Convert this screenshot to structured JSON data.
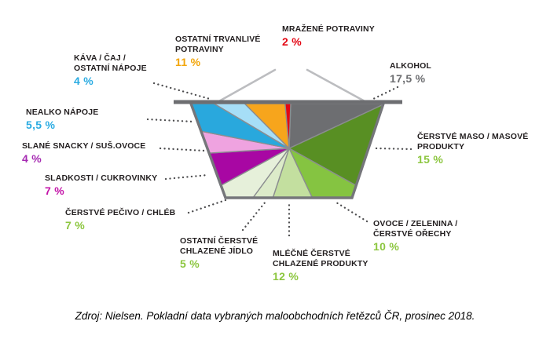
{
  "chart_data": {
    "type": "pie",
    "variant": "basket-shaped segment chart (shopping basket infographic)",
    "unit": "%",
    "total": 100,
    "legend_position": "callout labels around chart with dotted leader lines",
    "segments": [
      {
        "id": "alkohol",
        "label": "ALKOHOL",
        "lines": [
          "ALKOHOL"
        ],
        "value": 17.5,
        "value_label": "17,5 %",
        "color": "#6d6e71",
        "value_color": "#6d6e71"
      },
      {
        "id": "maso",
        "label": "ČERSTVÉ MASO / MASOVÉ PRODUKTY",
        "lines": [
          "ČERSTVÉ MASO / MASOVÉ",
          "PRODUKTY"
        ],
        "value": 15,
        "value_label": "15 %",
        "color": "#588f23",
        "value_color": "#8cc63f"
      },
      {
        "id": "ovoce",
        "label": "OVOCE / ZELENINA / ČERSTVÉ OŘECHY",
        "lines": [
          "OVOCE / ZELENINA /",
          "ČERSTVÉ OŘECHY"
        ],
        "value": 10,
        "value_label": "10 %",
        "color": "#85c441",
        "value_color": "#8cc63f"
      },
      {
        "id": "mlecne",
        "label": "MLÉČNÉ ČERSTVÉ CHLAZENÉ PRODUKTY",
        "lines": [
          "MLÉČNÉ ČERSTVÉ",
          "CHLAZENÉ PRODUKTY"
        ],
        "value": 12,
        "value_label": "12 %",
        "color": "#c3df9f",
        "value_color": "#8cc63f"
      },
      {
        "id": "ostatni-chlazene",
        "label": "OSTATNÍ ČERSTVÉ CHLAZENÉ JÍDLO",
        "lines": [
          "OSTATNÍ ČERSTVÉ",
          "CHLAZENÉ JÍDLO"
        ],
        "value": 5,
        "value_label": "5 %",
        "color": "#dcebc9",
        "value_color": "#8cc63f"
      },
      {
        "id": "pecivo",
        "label": "ČERSTVÉ PEČIVO / CHLÉB",
        "lines": [
          "ČERSTVÉ PEČIVO / CHLÉB"
        ],
        "value": 7,
        "value_label": "7 %",
        "color": "#e6f0da",
        "value_color": "#8cc63f"
      },
      {
        "id": "sladkosti",
        "label": "SLADKOSTI / CUKROVINKY",
        "lines": [
          "SLADKOSTI / CUKROVINKY"
        ],
        "value": 7,
        "value_label": "7 %",
        "color": "#a807a3",
        "value_color": "#c313a8"
      },
      {
        "id": "slane",
        "label": "SLANÉ SNACKY / SUŠ.OVOCE",
        "lines": [
          "SLANÉ SNACKY / SUŠ.OVOCE"
        ],
        "value": 4,
        "value_label": "4 %",
        "color": "#efa3e0",
        "value_color": "#a62bb2"
      },
      {
        "id": "nealko",
        "label": "NEALKO NÁPOJE",
        "lines": [
          "NEALKO NÁPOJE"
        ],
        "value": 5.5,
        "value_label": "5,5 %",
        "color": "#29a8dd",
        "value_color": "#29abe2"
      },
      {
        "id": "kava",
        "label": "KÁVA / ČAJ / OSTATNÍ NÁPOJE",
        "lines": [
          "KÁVA / ČAJ /",
          "OSTATNÍ NÁPOJE"
        ],
        "value": 4,
        "value_label": "4 %",
        "color": "#a6def7",
        "value_color": "#29abe2"
      },
      {
        "id": "trvanlive",
        "label": "OSTATNÍ TRVANLIVÉ POTRAVINY",
        "lines": [
          "OSTATNÍ TRVANLIVÉ",
          "POTRAVINY"
        ],
        "value": 11,
        "value_label": "11 %",
        "color": "#f7a51c",
        "value_color": "#f2a50a"
      },
      {
        "id": "mrazene",
        "label": "MRAŽENÉ POTRAVINY",
        "lines": [
          "MRAŽENÉ POTRAVINY"
        ],
        "value": 2,
        "value_label": "2 %",
        "color": "#e30613",
        "value_color": "#e30613"
      }
    ],
    "palette": {
      "rim": "#6d6e71",
      "outline": "#75767a",
      "wedge_stroke": "#8b8d90",
      "handle": "#bcbdc0",
      "leader_dots": "#4d4d4f",
      "label_text": "#231f20"
    },
    "source": "Zdroj: Nielsen. Pokladní data vybraných maloobchodních řetězců ČR, prosinec 2018."
  }
}
